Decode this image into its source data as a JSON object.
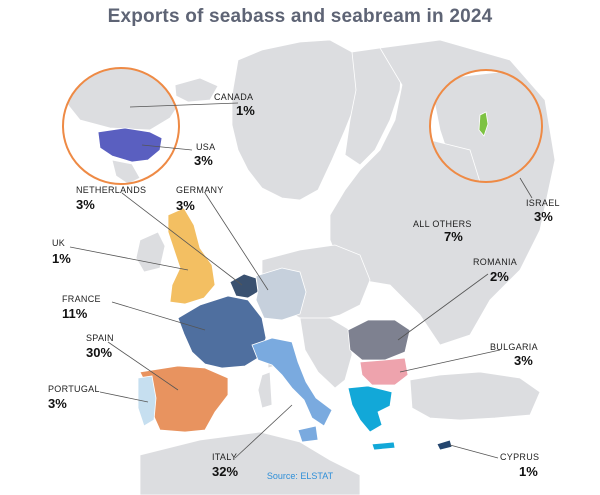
{
  "title": "Exports of seabass and seabream in 2024",
  "source": "Source: ELSTAT",
  "colors": {
    "land": "#dcdde0",
    "land_edge": "#c9cbcf",
    "inset_ring": "#ee8a45",
    "leader": "#555555",
    "usa": "#5a5fc0",
    "israel": "#7dc242",
    "netherlands": "#3a5170",
    "germany": "#c6d0dc",
    "uk": "#f3bf62",
    "france": "#4f6f9f",
    "spain": "#e8935f",
    "portugal": "#c6dff0",
    "italy": "#7aaadf",
    "romania": "#7e8190",
    "bulgaria": "#eea3ad",
    "greece": "#12a8d8",
    "cyprus": "#24466e"
  },
  "countries": {
    "canada": {
      "name": "CANADA",
      "share": "1%"
    },
    "usa": {
      "name": "USA",
      "share": "3%"
    },
    "netherlands": {
      "name": "NETHERLANDS",
      "share": "3%"
    },
    "germany": {
      "name": "GERMANY",
      "share": "3%"
    },
    "uk": {
      "name": "UK",
      "share": "1%"
    },
    "france": {
      "name": "FRANCE",
      "share": "11%"
    },
    "spain": {
      "name": "SPAIN",
      "share": "30%"
    },
    "portugal": {
      "name": "PORTUGAL",
      "share": "3%"
    },
    "italy": {
      "name": "ITALY",
      "share": "32%"
    },
    "all_others": {
      "name": "ALL OTHERS",
      "share": "7%"
    },
    "romania": {
      "name": "ROMANIA",
      "share": "2%"
    },
    "bulgaria": {
      "name": "BULGARIA",
      "share": "3%"
    },
    "cyprus": {
      "name": "CYPRUS",
      "share": "1%"
    },
    "israel": {
      "name": "ISRAEL",
      "share": "3%"
    }
  }
}
